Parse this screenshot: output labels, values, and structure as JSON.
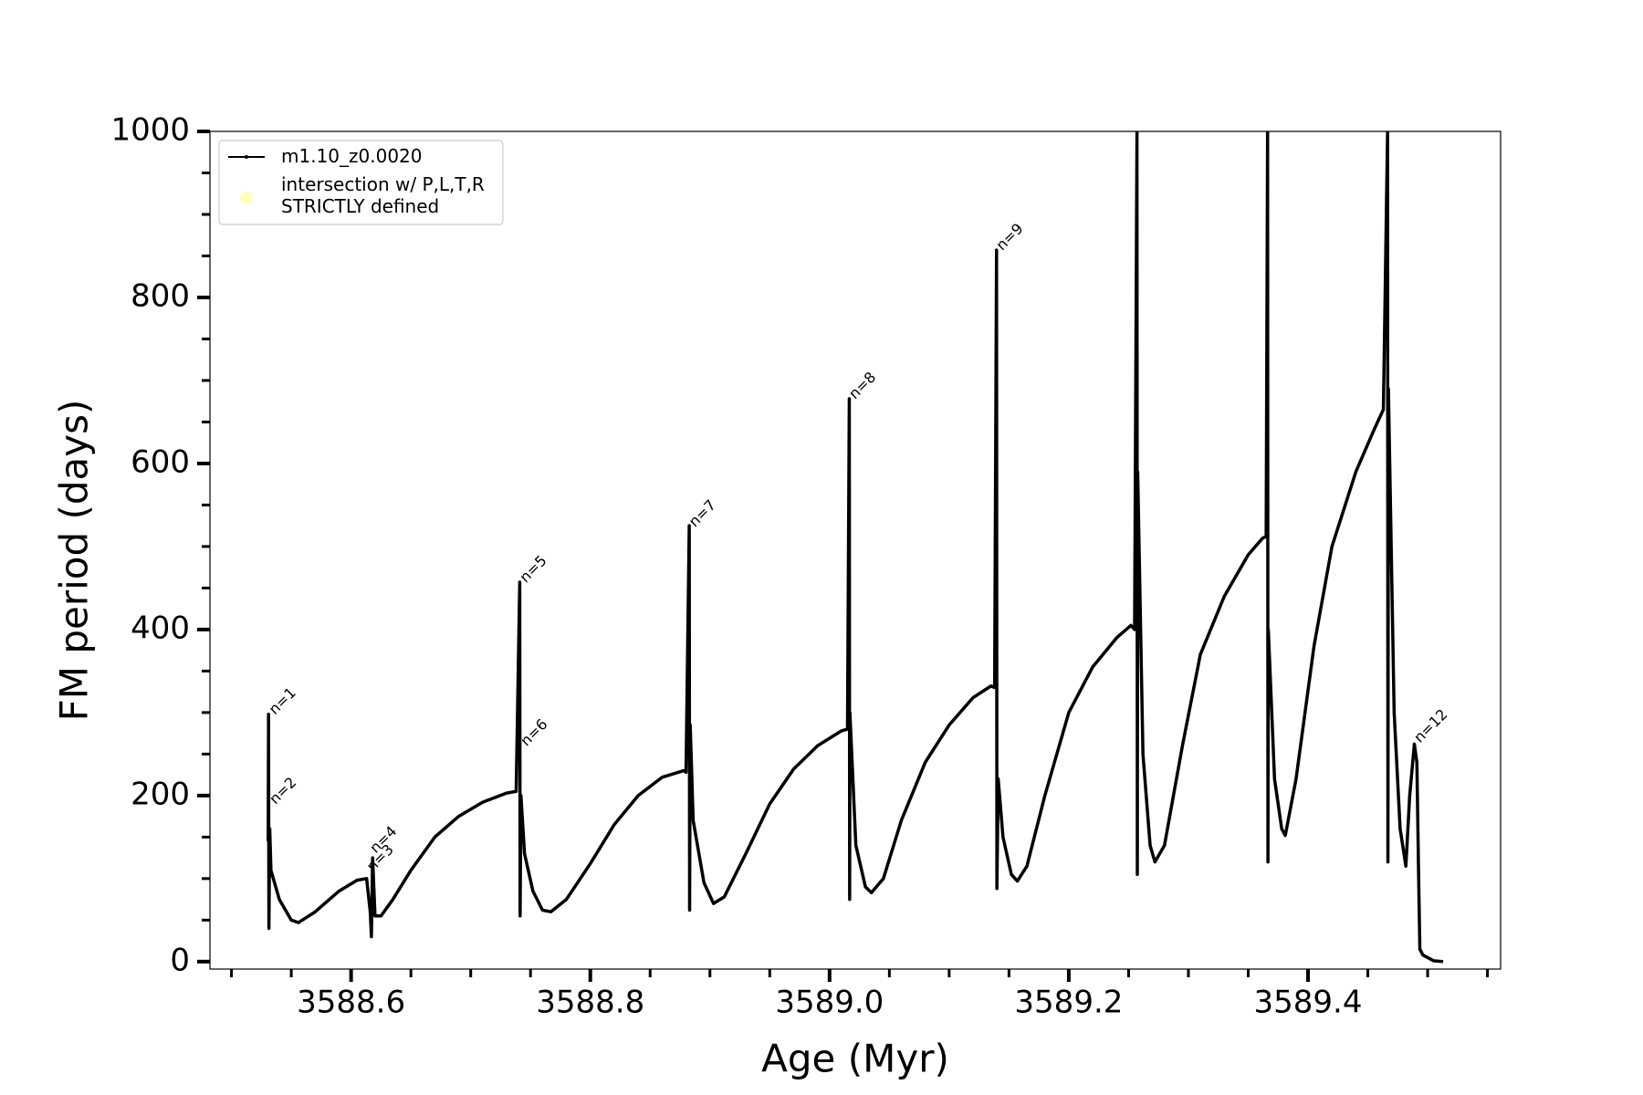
{
  "chart_data": {
    "type": "line",
    "xlabel": "Age (Myr)",
    "ylabel": "FM period (days)",
    "xlim": [
      3588.482,
      3589.561
    ],
    "ylim": [
      -9,
      1000
    ],
    "xticks": [
      3588.6,
      3588.8,
      {
        "value": 3589.0,
        "label": "3589.0"
      },
      3589.2,
      3589.4
    ],
    "xminor_ticks": [
      3588.5,
      3588.55,
      3588.65,
      3588.7,
      3588.75,
      3588.85,
      3588.9,
      3588.95,
      3589.05,
      3589.1,
      3589.15,
      3589.25,
      3589.3,
      3589.35,
      3589.45,
      3589.5,
      3589.55
    ],
    "yticks": [
      0,
      200,
      400,
      600,
      800,
      1000
    ],
    "yminor_ticks": [
      50,
      100,
      150,
      250,
      300,
      350,
      450,
      500,
      550,
      650,
      700,
      750,
      850,
      900,
      950
    ],
    "grid": false,
    "legend": "upper left",
    "series": [
      {
        "name": "m1.10_z0.0020",
        "color": "#000000",
        "marker": "dot",
        "x": [
          3588.5307,
          3588.531,
          3588.5313,
          3588.532,
          3588.533,
          3588.54,
          3588.55,
          3588.556,
          3588.57,
          3588.59,
          3588.605,
          3588.613,
          3588.616,
          3588.617,
          3588.618,
          3588.62,
          3588.625,
          3588.635,
          3588.65,
          3588.67,
          3588.69,
          3588.71,
          3588.73,
          3588.738,
          3588.741,
          3588.7413,
          3588.742,
          3588.745,
          3588.752,
          3588.76,
          3588.767,
          3588.78,
          3588.8,
          3588.82,
          3588.84,
          3588.86,
          3588.878,
          3588.88,
          3588.8827,
          3588.883,
          3588.8835,
          3588.886,
          3588.895,
          3588.903,
          3588.912,
          3588.93,
          3588.95,
          3588.97,
          3588.99,
          3589.01,
          3589.015,
          3589.0165,
          3589.0168,
          3589.017,
          3589.022,
          3589.03,
          3589.035,
          3589.045,
          3589.06,
          3589.08,
          3589.1,
          3589.12,
          3589.135,
          3589.138,
          3589.1396,
          3589.1399,
          3589.141,
          3589.145,
          3589.152,
          3589.157,
          3589.165,
          3589.18,
          3589.2,
          3589.22,
          3589.24,
          3589.252,
          3589.255,
          3589.257,
          3589.2573,
          3589.2576,
          3589.262,
          3589.268,
          3589.272,
          3589.28,
          3589.295,
          3589.31,
          3589.33,
          3589.35,
          3589.362,
          3589.365,
          3589.3662,
          3589.3665,
          3589.3668,
          3589.372,
          3589.378,
          3589.381,
          3589.39,
          3589.405,
          3589.42,
          3589.44,
          3589.455,
          3589.463,
          3589.4665,
          3589.4668,
          3589.4672,
          3589.472,
          3589.477,
          3589.4818,
          3589.485,
          3589.4889,
          3589.491,
          3589.4925,
          3589.4935,
          3589.496,
          3589.505,
          3589.513
        ],
        "values": [
          145,
          298,
          40,
          160,
          110,
          75,
          50,
          47,
          60,
          85,
          98,
          100,
          60,
          30,
          125,
          55,
          55,
          75,
          110,
          150,
          175,
          192,
          203,
          205,
          457,
          55,
          200,
          130,
          85,
          62,
          60,
          75,
          118,
          165,
          200,
          222,
          230,
          228,
          525,
          62,
          285,
          170,
          95,
          70,
          78,
          130,
          190,
          232,
          260,
          278,
          280,
          678,
          75,
          300,
          140,
          90,
          83,
          100,
          170,
          240,
          285,
          318,
          332,
          330,
          857,
          88,
          220,
          150,
          105,
          97,
          115,
          200,
          300,
          355,
          390,
          405,
          400,
          1000,
          105,
          590,
          250,
          140,
          120,
          140,
          260,
          370,
          440,
          490,
          510,
          512,
          1000,
          120,
          400,
          220,
          160,
          152,
          220,
          380,
          500,
          590,
          640,
          665,
          1000,
          120,
          690,
          300,
          160,
          115,
          200,
          262,
          240,
          100,
          15,
          8,
          1,
          0
        ]
      },
      {
        "name": "intersection w/ P,L,T,R\nSTRICTLY defined",
        "color": "#ffffc0",
        "marker": "circle",
        "x": [],
        "values": []
      }
    ],
    "annotations": [
      {
        "text": "n=1",
        "x": 3588.5316,
        "y": 298
      },
      {
        "text": "n=2",
        "x": 3588.532,
        "y": 190
      },
      {
        "text": "n=3",
        "x": 3588.6133,
        "y": 109
      },
      {
        "text": "n=4",
        "x": 3588.616,
        "y": 131
      },
      {
        "text": "n=5",
        "x": 3588.7413,
        "y": 457
      },
      {
        "text": "n=6",
        "x": 3588.742,
        "y": 260
      },
      {
        "text": "n=7",
        "x": 3588.8827,
        "y": 524
      },
      {
        "text": "n=8",
        "x": 3589.0165,
        "y": 678
      },
      {
        "text": "n=9",
        "x": 3589.1396,
        "y": 857
      },
      {
        "text": "n=12",
        "x": 3589.4889,
        "y": 264
      }
    ]
  }
}
